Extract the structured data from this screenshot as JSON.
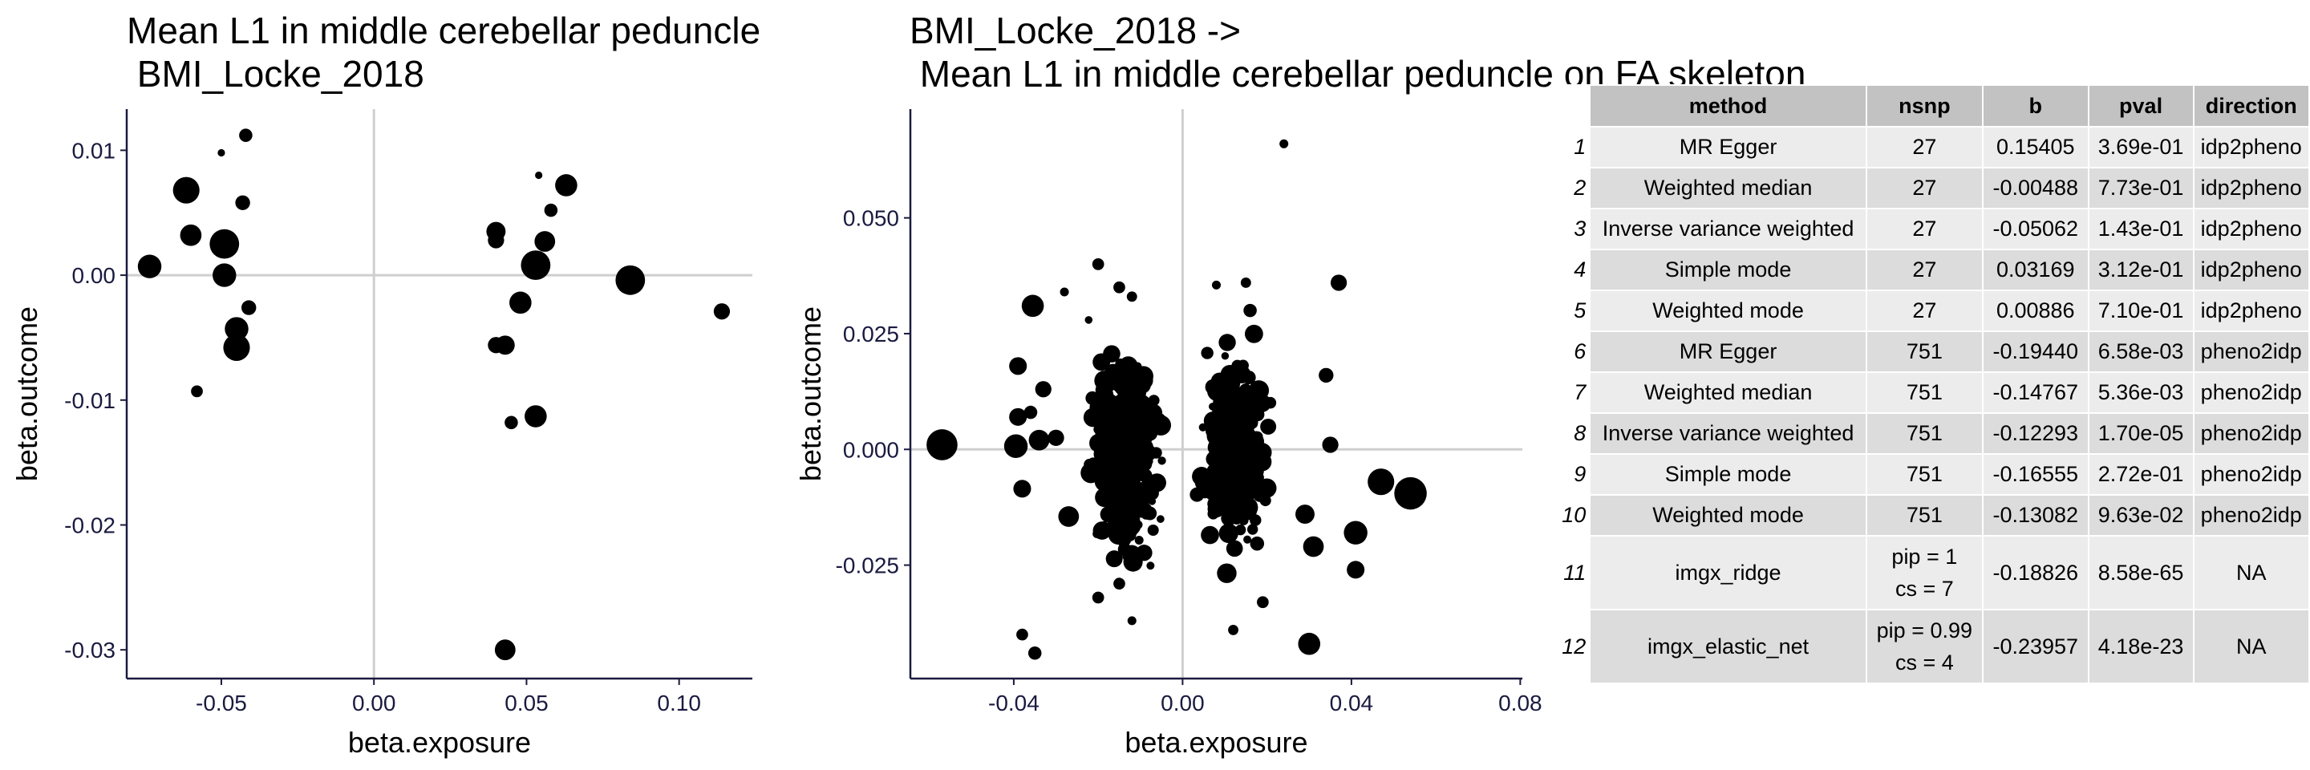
{
  "chart_data": [
    {
      "type": "scatter",
      "title": "Mean L1 in middle cerebellar peduncle on FA skeleton ->\n BMI_Locke_2018",
      "xlabel": "beta.exposure",
      "ylabel": "beta.outcome",
      "xlim": [
        -0.081,
        0.124
      ],
      "ylim": [
        -0.0323,
        0.0133
      ],
      "xticks": [
        {
          "v": -0.05,
          "label": "-0.05"
        },
        {
          "v": 0.0,
          "label": "0.00"
        },
        {
          "v": 0.05,
          "label": "0.05"
        },
        {
          "v": 0.1,
          "label": "0.10"
        }
      ],
      "yticks": [
        {
          "v": 0.01,
          "label": "0.01"
        },
        {
          "v": 0.0,
          "label": "0.00"
        },
        {
          "v": -0.01,
          "label": "-0.01"
        },
        {
          "v": -0.02,
          "label": "-0.02"
        },
        {
          "v": -0.03,
          "label": "-0.03"
        }
      ],
      "points": [
        [
          -0.0735,
          0.0007,
          3.2
        ],
        [
          -0.0615,
          0.0068,
          3.6
        ],
        [
          -0.06,
          0.0032,
          2.9
        ],
        [
          -0.05,
          0.0098,
          1.0
        ],
        [
          -0.049,
          0.0025,
          4.0
        ],
        [
          -0.049,
          0.0,
          3.2
        ],
        [
          -0.045,
          -0.0043,
          3.2
        ],
        [
          -0.045,
          -0.0058,
          3.6
        ],
        [
          -0.043,
          0.0058,
          2.0
        ],
        [
          -0.042,
          0.0112,
          1.8
        ],
        [
          -0.041,
          -0.0026,
          2.0
        ],
        [
          -0.058,
          -0.0093,
          1.6
        ],
        [
          0.04,
          0.0035,
          2.6
        ],
        [
          0.04,
          0.0028,
          2.2
        ],
        [
          0.04,
          -0.0056,
          2.2
        ],
        [
          0.043,
          -0.0056,
          2.6
        ],
        [
          0.045,
          -0.0118,
          1.8
        ],
        [
          0.043,
          -0.03,
          2.8
        ],
        [
          0.048,
          -0.0022,
          3.0
        ],
        [
          0.053,
          0.0008,
          4.0
        ],
        [
          0.053,
          -0.0113,
          3.0
        ],
        [
          0.054,
          0.008,
          1.0
        ],
        [
          0.056,
          0.0027,
          2.8
        ],
        [
          0.058,
          0.0052,
          1.8
        ],
        [
          0.063,
          0.0072,
          3.0
        ],
        [
          0.084,
          -0.0004,
          4.0
        ],
        [
          0.114,
          -0.0029,
          2.2
        ]
      ]
    },
    {
      "type": "scatter",
      "title": "BMI_Locke_2018 ->\n Mean L1 in middle cerebellar peduncle on FA skeleton",
      "xlabel": "beta.exposure",
      "ylabel": "beta.outcome",
      "xlim": [
        -0.0645,
        0.0805
      ],
      "ylim": [
        -0.0495,
        0.0735
      ],
      "xticks": [
        {
          "v": -0.04,
          "label": "-0.04"
        },
        {
          "v": 0.0,
          "label": "0.00"
        },
        {
          "v": 0.04,
          "label": "0.04"
        },
        {
          "v": 0.08,
          "label": "0.08"
        }
      ],
      "yticks": [
        {
          "v": 0.05,
          "label": "0.050"
        },
        {
          "v": 0.025,
          "label": "0.025"
        },
        {
          "v": 0.0,
          "label": "0.000"
        },
        {
          "v": -0.025,
          "label": "-0.025"
        }
      ],
      "points_note_seed": 7,
      "points_fixed": [
        [
          -0.057,
          0.001,
          4.2
        ],
        [
          -0.0395,
          0.0007,
          3.2
        ],
        [
          -0.039,
          0.007,
          2.4
        ],
        [
          -0.0355,
          0.031,
          3.0
        ],
        [
          -0.034,
          0.002,
          2.8
        ],
        [
          -0.03,
          0.0025,
          2.2
        ],
        [
          -0.027,
          -0.0145,
          2.8
        ],
        [
          -0.038,
          -0.0085,
          2.4
        ],
        [
          -0.038,
          -0.04,
          1.6
        ],
        [
          -0.035,
          -0.044,
          1.8
        ],
        [
          -0.028,
          0.034,
          1.2
        ],
        [
          -0.02,
          0.04,
          1.6
        ],
        [
          -0.015,
          0.035,
          1.6
        ],
        [
          -0.012,
          0.033,
          1.4
        ],
        [
          -0.02,
          -0.032,
          1.6
        ],
        [
          -0.015,
          -0.029,
          1.6
        ],
        [
          -0.012,
          -0.037,
          1.2
        ],
        [
          0.008,
          0.0355,
          1.2
        ],
        [
          0.015,
          0.036,
          1.4
        ],
        [
          0.016,
          0.03,
          1.8
        ],
        [
          0.024,
          0.066,
          1.2
        ],
        [
          0.037,
          0.036,
          2.2
        ],
        [
          0.034,
          0.016,
          2.0
        ],
        [
          0.035,
          0.001,
          2.2
        ],
        [
          0.029,
          -0.014,
          2.6
        ],
        [
          0.031,
          -0.021,
          2.8
        ],
        [
          0.041,
          -0.026,
          2.4
        ],
        [
          0.03,
          -0.042,
          3.0
        ],
        [
          0.012,
          -0.039,
          1.4
        ],
        [
          0.019,
          -0.033,
          1.6
        ],
        [
          0.041,
          -0.018,
          3.2
        ],
        [
          0.047,
          -0.007,
          3.6
        ],
        [
          0.054,
          -0.0095,
          4.4
        ],
        [
          -0.039,
          0.018,
          2.4
        ],
        [
          -0.033,
          0.013,
          2.2
        ],
        [
          -0.036,
          0.008,
          1.8
        ]
      ],
      "cluster_left": {
        "x_center": -0.0135,
        "x_sd": 0.0045,
        "y_sd": 0.0125,
        "y_range": [
          -0.03,
          0.035
        ],
        "n": 340
      },
      "cluster_right": {
        "x_center": 0.0125,
        "x_sd": 0.0045,
        "y_sd": 0.0125,
        "y_range": [
          -0.035,
          0.035
        ],
        "n": 340
      }
    }
  ],
  "table": {
    "headers": [
      "method",
      "nsnp",
      "b",
      "pval",
      "direction"
    ],
    "rows": [
      {
        "n": "1",
        "method": "MR Egger",
        "nsnp": "27",
        "b": "0.15405",
        "pval": "3.69e-01",
        "direction": "idp2pheno"
      },
      {
        "n": "2",
        "method": "Weighted median",
        "nsnp": "27",
        "b": "-0.00488",
        "pval": "7.73e-01",
        "direction": "idp2pheno"
      },
      {
        "n": "3",
        "method": "Inverse variance weighted",
        "nsnp": "27",
        "b": "-0.05062",
        "pval": "1.43e-01",
        "direction": "idp2pheno"
      },
      {
        "n": "4",
        "method": "Simple mode",
        "nsnp": "27",
        "b": "0.03169",
        "pval": "3.12e-01",
        "direction": "idp2pheno"
      },
      {
        "n": "5",
        "method": "Weighted mode",
        "nsnp": "27",
        "b": "0.00886",
        "pval": "7.10e-01",
        "direction": "idp2pheno"
      },
      {
        "n": "6",
        "method": "MR Egger",
        "nsnp": "751",
        "b": "-0.19440",
        "pval": "6.58e-03",
        "direction": "pheno2idp"
      },
      {
        "n": "7",
        "method": "Weighted median",
        "nsnp": "751",
        "b": "-0.14767",
        "pval": "5.36e-03",
        "direction": "pheno2idp"
      },
      {
        "n": "8",
        "method": "Inverse variance weighted",
        "nsnp": "751",
        "b": "-0.12293",
        "pval": "1.70e-05",
        "direction": "pheno2idp"
      },
      {
        "n": "9",
        "method": "Simple mode",
        "nsnp": "751",
        "b": "-0.16555",
        "pval": "2.72e-01",
        "direction": "pheno2idp"
      },
      {
        "n": "10",
        "method": "Weighted mode",
        "nsnp": "751",
        "b": "-0.13082",
        "pval": "9.63e-02",
        "direction": "pheno2idp"
      },
      {
        "n": "11",
        "method": "imgx_ridge",
        "nsnp": "pip = 1\ncs = 7",
        "b": "-0.18826",
        "pval": "8.58e-65",
        "direction": "NA"
      },
      {
        "n": "12",
        "method": "imgx_elastic_net",
        "nsnp": "pip = 0.99\ncs = 4",
        "b": "-0.23957",
        "pval": "4.18e-23",
        "direction": "NA"
      }
    ]
  }
}
